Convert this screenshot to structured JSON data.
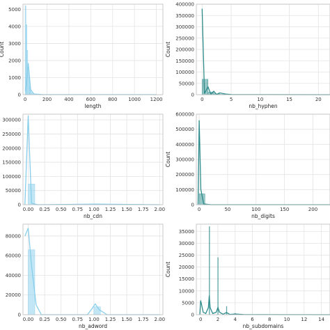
{
  "chart_data": [
    {
      "type": "bar",
      "xlabel": "length",
      "ylabel": "Count",
      "xlim": [
        -20,
        1260
      ],
      "ylim": [
        0,
        5300
      ],
      "xticks": [
        0,
        200,
        400,
        600,
        800,
        1000,
        1200
      ],
      "yticks": [
        0,
        1000,
        2000,
        3000,
        4000,
        5000
      ],
      "grid": true,
      "color": "#87ceeb",
      "bars": [
        {
          "x0": 0,
          "x1": 8,
          "value": 5200
        },
        {
          "x0": 8,
          "x1": 16,
          "value": 4100
        },
        {
          "x0": 16,
          "x1": 24,
          "value": 2600
        },
        {
          "x0": 24,
          "x1": 32,
          "value": 1700
        },
        {
          "x0": 32,
          "x1": 40,
          "value": 1000
        },
        {
          "x0": 40,
          "x1": 48,
          "value": 520
        },
        {
          "x0": 48,
          "x1": 56,
          "value": 250
        },
        {
          "x0": 56,
          "x1": 64,
          "value": 110
        },
        {
          "x0": 64,
          "x1": 72,
          "value": 50
        }
      ],
      "kde": [
        [
          5,
          200
        ],
        [
          20,
          1300
        ],
        [
          28,
          1850
        ],
        [
          36,
          1300
        ],
        [
          50,
          300
        ],
        [
          80,
          40
        ],
        [
          150,
          10
        ],
        [
          1200,
          5
        ]
      ]
    },
    {
      "type": "bar",
      "xlabel": "nb_hyphen",
      "ylabel": "Count",
      "xlim": [
        -1,
        22
      ],
      "ylim": [
        0,
        400000
      ],
      "xticks": [
        0,
        5,
        10,
        15,
        20
      ],
      "yticks": [
        0,
        50000,
        100000,
        150000,
        200000,
        250000,
        300000,
        350000,
        400000
      ],
      "grid": true,
      "color": "#2e8b8b",
      "bars": [
        {
          "x0": 0,
          "x1": 1,
          "value": 68000
        },
        {
          "x0": 1,
          "x1": 2,
          "value": 12000
        },
        {
          "x0": 2,
          "x1": 3,
          "value": 4000
        },
        {
          "x0": 3,
          "x1": 4,
          "value": 1500
        }
      ],
      "kde": [
        [
          0,
          380000
        ],
        [
          0.4,
          5000
        ],
        [
          1,
          35000
        ],
        [
          1.5,
          2000
        ],
        [
          2,
          15000
        ],
        [
          2.5,
          1000
        ],
        [
          3,
          8000
        ],
        [
          4,
          3000
        ],
        [
          5,
          500
        ],
        [
          22,
          0
        ]
      ]
    },
    {
      "type": "bar",
      "xlabel": "nb_cdn",
      "ylabel": "",
      "xlim": [
        -0.08,
        2.05
      ],
      "ylim": [
        0,
        320000
      ],
      "xticks": [
        0.0,
        0.25,
        0.5,
        0.75,
        1.0,
        1.25,
        1.5,
        1.75,
        2.0
      ],
      "xtick_labels": [
        "0.00",
        "0.25",
        "0.50",
        "0.75",
        "1.00",
        "1.25",
        "1.50",
        "1.75",
        "2.00"
      ],
      "yticks": [
        0,
        50000,
        100000,
        150000,
        200000,
        250000,
        300000
      ],
      "grid": true,
      "color": "#87ceeb",
      "bars": [
        {
          "x0": 0,
          "x1": 0.1,
          "value": 73000
        },
        {
          "x0": 0.95,
          "x1": 1.05,
          "value": 1000
        }
      ],
      "kde": [
        [
          -0.05,
          0
        ],
        [
          0,
          315000
        ],
        [
          0.05,
          5000
        ],
        [
          0.15,
          0
        ],
        [
          1.0,
          2000
        ],
        [
          2.0,
          0
        ]
      ]
    },
    {
      "type": "bar",
      "xlabel": "nb_digits",
      "ylabel": "Count",
      "xlim": [
        -5,
        230
      ],
      "ylim": [
        0,
        600000
      ],
      "xticks": [
        0,
        50,
        100,
        150,
        200
      ],
      "yticks": [
        0,
        100000,
        200000,
        300000,
        400000,
        500000,
        600000
      ],
      "grid": true,
      "color": "#2e8b8b",
      "bars": [
        {
          "x0": 0,
          "x1": 10,
          "value": 72000
        },
        {
          "x0": 10,
          "x1": 20,
          "value": 2000
        }
      ],
      "kde": [
        [
          -2,
          0
        ],
        [
          0,
          560000
        ],
        [
          3,
          100000
        ],
        [
          8,
          5000
        ],
        [
          20,
          0
        ],
        [
          230,
          0
        ]
      ]
    },
    {
      "type": "bar",
      "xlabel": "nb_adword",
      "ylabel": "",
      "xlim": [
        -0.08,
        2.05
      ],
      "ylim": [
        0,
        92000
      ],
      "xticks": [
        0.0,
        0.25,
        0.5,
        0.75,
        1.0,
        1.25,
        1.5,
        1.75,
        2.0
      ],
      "xtick_labels": [
        "0.00",
        "0.25",
        "0.50",
        "0.75",
        "1.00",
        "1.25",
        "1.50",
        "1.75",
        "2.00"
      ],
      "yticks": [
        0,
        20000,
        40000,
        60000,
        80000
      ],
      "grid": true,
      "color": "#87ceeb",
      "bars": [
        {
          "x0": 0,
          "x1": 0.1,
          "value": 66000
        },
        {
          "x0": 1.0,
          "x1": 1.1,
          "value": 8000
        }
      ],
      "kde": [
        [
          -0.05,
          80000
        ],
        [
          0,
          88000
        ],
        [
          0.05,
          50000
        ],
        [
          0.12,
          10000
        ],
        [
          0.2,
          0
        ],
        [
          0.9,
          0
        ],
        [
          0.97,
          6000
        ],
        [
          1.02,
          11000
        ],
        [
          1.08,
          5000
        ],
        [
          1.2,
          0
        ],
        [
          2.0,
          0
        ]
      ]
    },
    {
      "type": "bar",
      "xlabel": "nb_subdomains",
      "ylabel": "Count",
      "xlim": [
        -0.5,
        15
      ],
      "ylim": [
        0,
        38000
      ],
      "xticks": [
        0,
        2,
        4,
        6,
        8,
        10,
        12,
        14
      ],
      "yticks": [
        0,
        5000,
        10000,
        15000,
        20000,
        25000,
        30000,
        35000
      ],
      "grid": true,
      "color": "#2e8b8b",
      "bars": [
        {
          "x0": 0.98,
          "x1": 1.02,
          "value": 37000
        },
        {
          "x0": 1.98,
          "x1": 2.02,
          "value": 24000
        },
        {
          "x0": 2.98,
          "x1": 3.02,
          "value": 3500
        },
        {
          "x0": 3.98,
          "x1": 4.02,
          "value": 600
        }
      ],
      "kde": [
        [
          -0.1,
          0
        ],
        [
          0,
          6000
        ],
        [
          0.3,
          1000
        ],
        [
          0.6,
          500
        ],
        [
          0.9,
          3000
        ],
        [
          1.0,
          8000
        ],
        [
          1.1,
          3000
        ],
        [
          1.4,
          500
        ],
        [
          1.8,
          1000
        ],
        [
          2.0,
          3000
        ],
        [
          2.2,
          1000
        ],
        [
          2.6,
          200
        ],
        [
          3.0,
          900
        ],
        [
          3.4,
          100
        ],
        [
          4.0,
          300
        ],
        [
          5.0,
          50
        ],
        [
          15,
          0
        ]
      ]
    }
  ]
}
